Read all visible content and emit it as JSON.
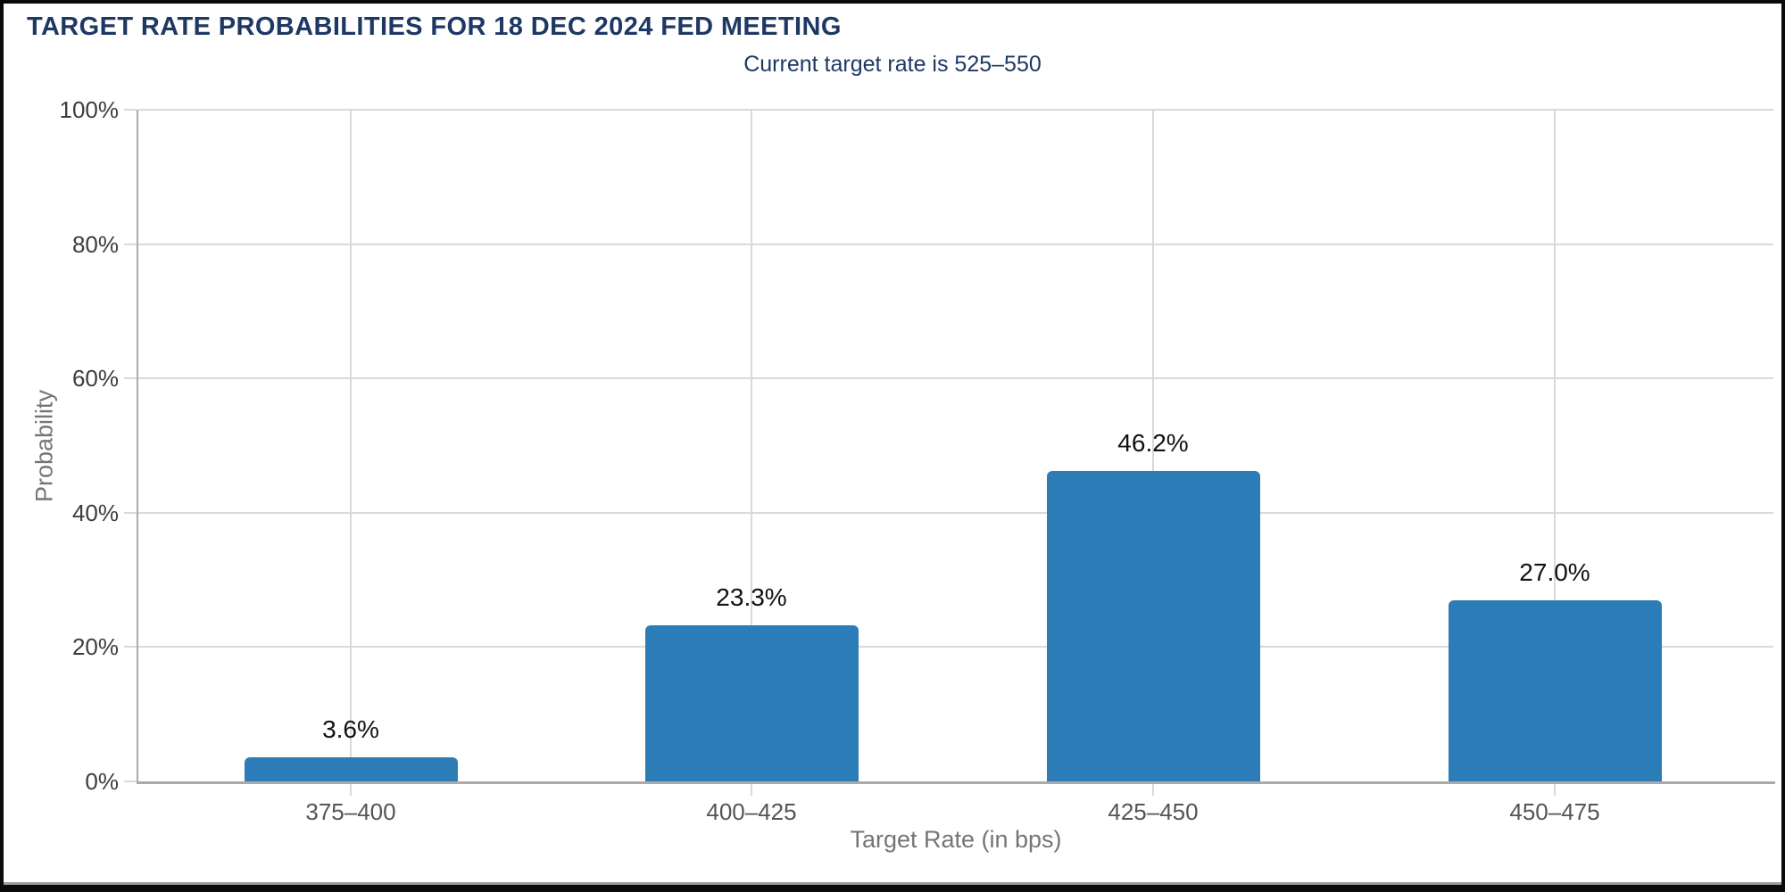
{
  "chart_data": {
    "type": "bar",
    "title": "TARGET RATE PROBABILITIES FOR 18 DEC 2024 FED MEETING",
    "subtitle": "Current target rate is 525–550",
    "categories": [
      "375–400",
      "400–425",
      "425–450",
      "450–475"
    ],
    "values": [
      3.6,
      23.3,
      46.2,
      27.0
    ],
    "value_labels": [
      "3.6%",
      "23.3%",
      "46.2%",
      "27.0%"
    ],
    "xlabel": "Target Rate (in bps)",
    "ylabel": "Probability",
    "ylim": [
      0,
      100
    ],
    "ytick_step": 20,
    "ytick_labels": [
      "0%",
      "20%",
      "40%",
      "60%",
      "80%",
      "100%"
    ],
    "grid": true,
    "legend": false,
    "colors": {
      "bar": "#2c7db7",
      "heading_text": "#1e3864",
      "grid_line": "#d9d9d9",
      "axis_line": "#aaaaaa",
      "ytick_label": "#3d3d3d",
      "category_label": "#555555",
      "axis_title": "#757575",
      "value_label": "#111111"
    }
  }
}
